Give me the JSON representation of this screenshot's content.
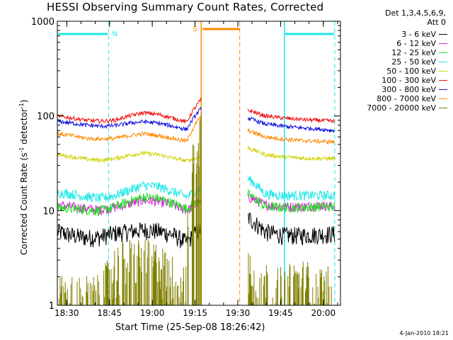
{
  "chart_data": {
    "type": "line",
    "title": "HESSI Observing Summary Count Rates, Corrected",
    "xlabel": "Start Time (25-Sep-08 18:26:42)",
    "ylabel_parts": [
      "Corrected Count Rate (s",
      "-1",
      " detector",
      "-1",
      ")"
    ],
    "y_scale": "log",
    "ylim": [
      1,
      1000
    ],
    "y_ticks": [
      1,
      10,
      100,
      1000
    ],
    "y_tick_labels": [
      "1",
      "10",
      "100",
      "1000"
    ],
    "xlim": [
      "18:26:42",
      "20:06:00"
    ],
    "x_ticks": [
      "18:30",
      "18:45",
      "19:00",
      "19:15",
      "19:30",
      "19:45",
      "20:00"
    ],
    "legend_header": [
      "Det 1,3,4,5,6,9,",
      "Att 0"
    ],
    "series": [
      {
        "name": "3 - 6 keV",
        "color": "#000000",
        "values_by_segment": [
          [
            6.0,
            5.5,
            5.2,
            5.3,
            5.8,
            6.0,
            6.3,
            6.1,
            5.6,
            4.6,
            6.5
          ],
          [
            8.5,
            6.0,
            5.5,
            5.5,
            5.6,
            5.7
          ]
        ]
      },
      {
        "name": "6 - 12 keV",
        "color": "#e020e0",
        "values_by_segment": [
          [
            11.5,
            11.0,
            10.5,
            10.2,
            10.8,
            11.8,
            12.8,
            12.5,
            11.5,
            10.0,
            12.5
          ],
          [
            14.0,
            11.5,
            11.0,
            11.0,
            11.3,
            11.2
          ]
        ]
      },
      {
        "name": "12 - 25 keV",
        "color": "#20dd20",
        "values_by_segment": [
          [
            10.8,
            10.5,
            10.2,
            10.0,
            11.0,
            12.5,
            14.0,
            13.5,
            12.0,
            10.5,
            13.0
          ],
          [
            15.0,
            11.0,
            10.8,
            10.8,
            11.0,
            11.0
          ]
        ]
      },
      {
        "name": "25 - 50 keV",
        "color": "#20e8e8",
        "values_by_segment": [
          [
            15.5,
            15.0,
            14.0,
            13.5,
            14.5,
            16.5,
            18.5,
            18.0,
            16.0,
            14.0,
            17.0
          ],
          [
            22.0,
            15.0,
            14.5,
            14.5,
            14.5,
            14.5
          ]
        ]
      },
      {
        "name": "50 - 100 keV",
        "color": "#d0d000",
        "values_by_segment": [
          [
            39.0,
            37.0,
            35.0,
            34.0,
            35.5,
            38.5,
            40.5,
            39.0,
            36.0,
            33.5,
            37.0
          ],
          [
            46.0,
            39.0,
            37.0,
            36.0,
            35.5,
            35.5
          ]
        ]
      },
      {
        "name": "100 - 300 keV",
        "color": "#ee1010",
        "values_by_segment": [
          [
            100.0,
            95.0,
            90.0,
            88.0,
            90.0,
            100.0,
            108.0,
            104.0,
            95.0,
            86.0,
            150.0
          ],
          [
            115.0,
            100.0,
            95.0,
            92.0,
            90.0,
            88.0
          ]
        ]
      },
      {
        "name": "300 - 800 keV",
        "color": "#1010e0",
        "values_by_segment": [
          [
            88.0,
            84.0,
            80.0,
            78.0,
            79.0,
            84.0,
            87.0,
            84.0,
            78.0,
            72.0,
            120.0
          ],
          [
            95.0,
            82.0,
            78.0,
            75.0,
            73.0,
            70.0
          ]
        ]
      },
      {
        "name": "800 - 7000 keV",
        "color": "#ff8800",
        "values_by_segment": [
          [
            65.0,
            62.0,
            58.0,
            57.0,
            58.0,
            62.0,
            65.0,
            62.0,
            58.0,
            54.0,
            100.0
          ],
          [
            70.0,
            60.0,
            57.0,
            55.0,
            54.0,
            53.0
          ]
        ]
      },
      {
        "name": "7000 - 20000 keV",
        "color": "#808000",
        "values_by_segment": [
          [
            1.0,
            1.0,
            1.0,
            1.0,
            2.0,
            2.5,
            2.5,
            2.2,
            1.6,
            1.3,
            60.0
          ],
          [
            2.0,
            1.4,
            1.2,
            1.5,
            1.3,
            1.2
          ]
        ]
      }
    ],
    "segments": [
      {
        "x_start": "18:26:42",
        "x_end": "19:17:10"
      },
      {
        "x_start": "19:33:30",
        "x_end": "20:04:00"
      }
    ],
    "annotations": [
      {
        "label": "N",
        "color": "#20e8e8",
        "x_start": "18:26:42",
        "x_end": "18:44:40"
      },
      {
        "label": "N",
        "color": "#20e8e8",
        "x_start": "19:46:20",
        "x_end": "20:04:00"
      },
      {
        "label": "S",
        "color": "#ff8800",
        "x_start": "19:17:10",
        "x_end": "19:30:40"
      }
    ],
    "grid": false
  },
  "timestamp": "4-Jan-2010 18:21"
}
